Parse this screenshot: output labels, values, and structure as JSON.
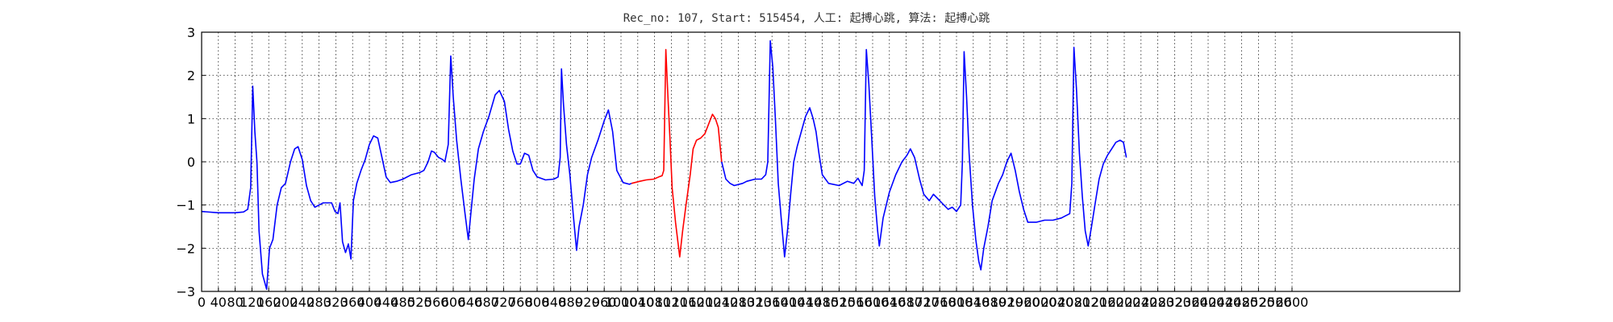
{
  "chart_data": {
    "type": "line",
    "title": "Rec_no: 107, Start: 515454, 人工: 起搏心跳, 算法: 起搏心跳",
    "xlabel": "",
    "ylabel": "",
    "xlim": [
      0,
      3000
    ],
    "ylim": [
      -3,
      3
    ],
    "grid": true,
    "yticks": [
      -3,
      -2,
      -1,
      0,
      1,
      2,
      3
    ],
    "yticklabels": [
      "−3",
      "−2",
      "−1",
      "0",
      "1",
      "2",
      "3"
    ],
    "xticks": [
      0,
      40,
      80,
      120,
      160,
      200,
      240,
      280,
      320,
      360,
      400,
      440,
      480,
      520,
      560,
      600,
      640,
      680,
      720,
      760,
      800,
      840,
      880,
      920,
      960,
      1000,
      1040,
      1080,
      1120,
      1160,
      1200,
      1240,
      1280,
      1320,
      1360,
      1400,
      1440,
      1480,
      1520,
      1560,
      1600,
      1640,
      1680,
      1720,
      1760,
      1800,
      1840,
      1880,
      1920,
      1960,
      2000,
      2040,
      2080,
      2120,
      2160,
      2200,
      2240,
      2280,
      2320,
      2360,
      2400,
      2440,
      2480,
      2520,
      2560,
      2600
    ],
    "series": [
      {
        "color": "#0000ff",
        "points": [
          [
            0,
            -1.15
          ],
          [
            40,
            -1.18
          ],
          [
            80,
            -1.18
          ],
          [
            100,
            -1.16
          ],
          [
            110,
            -1.1
          ],
          [
            117,
            -0.6
          ],
          [
            122,
            1.75
          ],
          [
            127,
            0.7
          ],
          [
            132,
            0.0
          ],
          [
            137,
            -1.6
          ],
          [
            145,
            -2.6
          ],
          [
            155,
            -2.95
          ],
          [
            162,
            -2.0
          ],
          [
            170,
            -1.8
          ],
          [
            180,
            -1.0
          ],
          [
            190,
            -0.6
          ],
          [
            200,
            -0.5
          ],
          [
            212,
            0.0
          ],
          [
            222,
            0.3
          ],
          [
            230,
            0.35
          ],
          [
            240,
            0.05
          ],
          [
            250,
            -0.55
          ],
          [
            260,
            -0.9
          ],
          [
            270,
            -1.05
          ],
          [
            290,
            -0.95
          ],
          [
            310,
            -0.95
          ],
          [
            318,
            -1.15
          ],
          [
            325,
            -1.2
          ],
          [
            330,
            -0.95
          ],
          [
            336,
            -1.85
          ],
          [
            343,
            -2.1
          ],
          [
            350,
            -1.9
          ],
          [
            356,
            -2.25
          ],
          [
            362,
            -0.9
          ],
          [
            370,
            -0.5
          ],
          [
            380,
            -0.2
          ],
          [
            390,
            0.05
          ],
          [
            400,
            0.4
          ],
          [
            410,
            0.6
          ],
          [
            420,
            0.55
          ],
          [
            430,
            0.1
          ],
          [
            440,
            -0.35
          ],
          [
            450,
            -0.48
          ],
          [
            465,
            -0.45
          ],
          [
            480,
            -0.4
          ],
          [
            500,
            -0.3
          ],
          [
            520,
            -0.25
          ],
          [
            530,
            -0.2
          ],
          [
            540,
            0.0
          ],
          [
            548,
            0.25
          ],
          [
            555,
            0.22
          ],
          [
            565,
            0.1
          ],
          [
            575,
            0.05
          ],
          [
            580,
            0.0
          ],
          [
            588,
            0.4
          ],
          [
            594,
            2.45
          ],
          [
            600,
            1.5
          ],
          [
            608,
            0.5
          ],
          [
            618,
            -0.4
          ],
          [
            628,
            -1.2
          ],
          [
            636,
            -1.8
          ],
          [
            642,
            -1.2
          ],
          [
            650,
            -0.4
          ],
          [
            660,
            0.3
          ],
          [
            672,
            0.7
          ],
          [
            685,
            1.05
          ],
          [
            700,
            1.55
          ],
          [
            710,
            1.65
          ],
          [
            722,
            1.4
          ],
          [
            732,
            0.75
          ],
          [
            742,
            0.25
          ],
          [
            752,
            -0.05
          ],
          [
            760,
            -0.05
          ],
          [
            770,
            0.2
          ],
          [
            780,
            0.15
          ],
          [
            790,
            -0.2
          ],
          [
            800,
            -0.35
          ],
          [
            820,
            -0.42
          ],
          [
            840,
            -0.4
          ],
          [
            850,
            -0.35
          ],
          [
            855,
            0.1
          ],
          [
            858,
            2.15
          ],
          [
            863,
            1.3
          ],
          [
            870,
            0.4
          ],
          [
            878,
            -0.3
          ],
          [
            886,
            -1.2
          ],
          [
            894,
            -2.05
          ],
          [
            900,
            -1.5
          ],
          [
            910,
            -1.0
          ],
          [
            920,
            -0.3
          ],
          [
            930,
            0.1
          ],
          [
            945,
            0.5
          ],
          [
            960,
            0.95
          ],
          [
            970,
            1.2
          ],
          [
            980,
            0.7
          ],
          [
            990,
            -0.2
          ],
          [
            1005,
            -0.48
          ],
          [
            1020,
            -0.52
          ],
          [
            1025,
            -0.5
          ]
        ]
      },
      {
        "color": "#ff0000",
        "points": [
          [
            1025,
            -0.5
          ],
          [
            1045,
            -0.45
          ],
          [
            1060,
            -0.42
          ],
          [
            1078,
            -0.4
          ],
          [
            1090,
            -0.35
          ],
          [
            1098,
            -0.32
          ],
          [
            1102,
            -0.2
          ],
          [
            1107,
            2.6
          ],
          [
            1112,
            1.5
          ],
          [
            1117,
            0.5
          ],
          [
            1122,
            -0.6
          ],
          [
            1130,
            -1.4
          ],
          [
            1140,
            -2.2
          ],
          [
            1147,
            -1.6
          ],
          [
            1155,
            -1.0
          ],
          [
            1165,
            -0.3
          ],
          [
            1172,
            0.3
          ],
          [
            1180,
            0.5
          ],
          [
            1190,
            0.55
          ],
          [
            1200,
            0.65
          ],
          [
            1210,
            0.9
          ],
          [
            1218,
            1.1
          ],
          [
            1225,
            1.0
          ],
          [
            1232,
            0.8
          ],
          [
            1236,
            0.4
          ],
          [
            1240,
            0.0
          ]
        ]
      },
      {
        "color": "#0000ff",
        "points": [
          [
            1240,
            0.0
          ],
          [
            1245,
            -0.2
          ],
          [
            1250,
            -0.4
          ],
          [
            1260,
            -0.5
          ],
          [
            1270,
            -0.55
          ],
          [
            1290,
            -0.5
          ],
          [
            1300,
            -0.45
          ],
          [
            1320,
            -0.4
          ],
          [
            1335,
            -0.4
          ],
          [
            1345,
            -0.3
          ],
          [
            1350,
            0.0
          ],
          [
            1356,
            2.8
          ],
          [
            1362,
            2.2
          ],
          [
            1368,
            1.0
          ],
          [
            1375,
            -0.5
          ],
          [
            1382,
            -1.3
          ],
          [
            1390,
            -2.2
          ],
          [
            1397,
            -1.6
          ],
          [
            1405,
            -0.7
          ],
          [
            1412,
            0.0
          ],
          [
            1420,
            0.35
          ],
          [
            1430,
            0.7
          ],
          [
            1440,
            1.05
          ],
          [
            1450,
            1.25
          ],
          [
            1458,
            1.0
          ],
          [
            1465,
            0.7
          ],
          [
            1472,
            0.2
          ],
          [
            1480,
            -0.3
          ],
          [
            1495,
            -0.5
          ],
          [
            1520,
            -0.55
          ],
          [
            1540,
            -0.45
          ],
          [
            1555,
            -0.5
          ],
          [
            1565,
            -0.38
          ],
          [
            1575,
            -0.55
          ],
          [
            1580,
            -0.2
          ],
          [
            1585,
            2.6
          ],
          [
            1591,
            1.8
          ],
          [
            1598,
            0.5
          ],
          [
            1605,
            -0.8
          ],
          [
            1612,
            -1.6
          ],
          [
            1616,
            -1.95
          ],
          [
            1625,
            -1.3
          ],
          [
            1640,
            -0.7
          ],
          [
            1655,
            -0.3
          ],
          [
            1670,
            0.0
          ],
          [
            1682,
            0.15
          ],
          [
            1690,
            0.3
          ],
          [
            1700,
            0.1
          ],
          [
            1712,
            -0.4
          ],
          [
            1722,
            -0.75
          ],
          [
            1735,
            -0.9
          ],
          [
            1745,
            -0.75
          ],
          [
            1755,
            -0.85
          ],
          [
            1765,
            -0.95
          ],
          [
            1780,
            -1.1
          ],
          [
            1790,
            -1.05
          ],
          [
            1800,
            -1.15
          ],
          [
            1810,
            -1.0
          ],
          [
            1814,
            0.0
          ],
          [
            1818,
            2.55
          ],
          [
            1824,
            1.5
          ],
          [
            1830,
            0.2
          ],
          [
            1838,
            -1.0
          ],
          [
            1846,
            -1.8
          ],
          [
            1853,
            -2.3
          ],
          [
            1858,
            -2.5
          ],
          [
            1865,
            -2.0
          ],
          [
            1875,
            -1.5
          ],
          [
            1885,
            -0.9
          ],
          [
            1900,
            -0.5
          ],
          [
            1910,
            -0.3
          ],
          [
            1920,
            0.0
          ],
          [
            1930,
            0.2
          ],
          [
            1940,
            -0.2
          ],
          [
            1950,
            -0.7
          ],
          [
            1960,
            -1.1
          ],
          [
            1970,
            -1.4
          ],
          [
            1990,
            -1.4
          ],
          [
            2010,
            -1.35
          ],
          [
            2030,
            -1.35
          ],
          [
            2050,
            -1.3
          ],
          [
            2060,
            -1.25
          ],
          [
            2070,
            -1.2
          ],
          [
            2075,
            -0.5
          ],
          [
            2080,
            2.65
          ],
          [
            2086,
            1.7
          ],
          [
            2093,
            0.2
          ],
          [
            2100,
            -0.8
          ],
          [
            2107,
            -1.6
          ],
          [
            2114,
            -1.95
          ],
          [
            2122,
            -1.5
          ],
          [
            2130,
            -1.0
          ],
          [
            2140,
            -0.4
          ],
          [
            2150,
            -0.05
          ],
          [
            2160,
            0.15
          ],
          [
            2170,
            0.3
          ],
          [
            2180,
            0.45
          ],
          [
            2190,
            0.5
          ],
          [
            2198,
            0.45
          ],
          [
            2205,
            0.1
          ]
        ]
      }
    ]
  }
}
